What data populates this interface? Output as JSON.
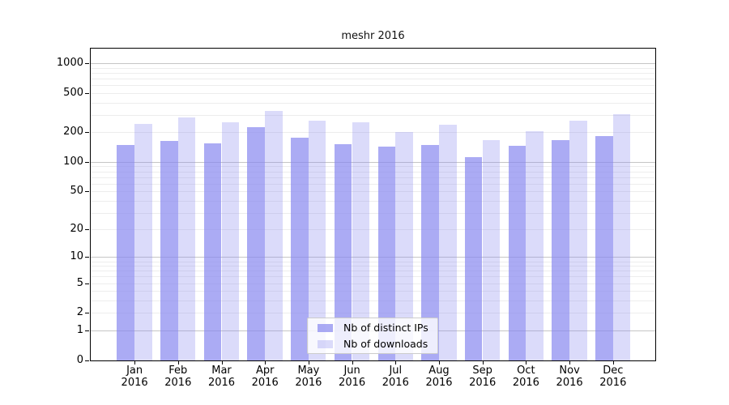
{
  "title": "meshr 2016",
  "legend": {
    "items": [
      {
        "label": "Nb of distinct IPs"
      },
      {
        "label": "Nb of downloads"
      }
    ]
  },
  "chart_data": {
    "type": "bar",
    "title": "meshr 2016",
    "categories": [
      "Jan 2016",
      "Feb 2016",
      "Mar 2016",
      "Apr 2016",
      "May 2016",
      "Jun 2016",
      "Jul 2016",
      "Aug 2016",
      "Sep 2016",
      "Oct 2016",
      "Nov 2016",
      "Dec 2016"
    ],
    "series": [
      {
        "name": "Nb of distinct IPs",
        "color": "rgba(135,135,240,0.7)",
        "values": [
          150,
          163,
          156,
          228,
          177,
          153,
          143,
          149,
          111,
          146,
          168,
          184
        ]
      },
      {
        "name": "Nb of downloads",
        "color": "rgba(135,135,240,0.3)",
        "values": [
          242,
          285,
          255,
          328,
          263,
          253,
          202,
          238,
          166,
          207,
          264,
          306
        ]
      }
    ],
    "yscale": "log1p",
    "ylim": [
      0,
      1440
    ],
    "y_tick_values": [
      0,
      1,
      2,
      5,
      10,
      20,
      50,
      100,
      200,
      500,
      1000
    ],
    "major_grid_values": [
      1,
      10,
      100,
      1000
    ],
    "minor_grid_values": [
      2,
      3,
      4,
      5,
      6,
      7,
      8,
      9,
      20,
      30,
      40,
      50,
      60,
      70,
      80,
      90,
      200,
      300,
      400,
      500,
      600,
      700,
      800,
      900
    ],
    "grid": true,
    "legend_position": "inside-bottom-center",
    "colors": {
      "background": "#ffffff",
      "axis": "#000000",
      "major_grid": "#c6c6c6",
      "minor_grid": "#ededed",
      "bar_distinct_ips_on_white": "#aaaaf3",
      "bar_downloads_on_white": "#dadaf8"
    }
  }
}
